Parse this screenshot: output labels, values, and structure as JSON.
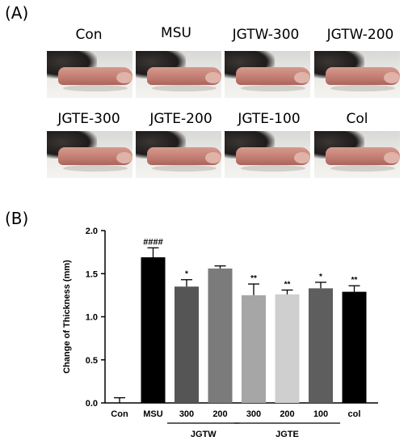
{
  "panels": {
    "a_label": "(A)",
    "b_label": "(B)"
  },
  "photos": {
    "row1": [
      "Con",
      "MSU",
      "JGTW-300",
      "JGTW-200"
    ],
    "row2": [
      "JGTE-300",
      "JGTE-200",
      "JGTE-100",
      "Col"
    ]
  },
  "chart_data": {
    "type": "bar",
    "categories": [
      "Con",
      "MSU",
      "300",
      "200",
      "300",
      "200",
      "100",
      "col"
    ],
    "values": [
      0.0,
      1.69,
      1.35,
      1.56,
      1.25,
      1.26,
      1.33,
      1.29
    ],
    "errors": [
      0.06,
      0.11,
      0.08,
      0.03,
      0.13,
      0.05,
      0.07,
      0.07
    ],
    "bar_colors": [
      "#000000",
      "#000000",
      "#555555",
      "#7b7b7b",
      "#a6a6a6",
      "#cfcfcf",
      "#5e5e5e",
      "#000000"
    ],
    "annotations": [
      "",
      "####",
      "*",
      "",
      "**",
      "**",
      "*",
      "**"
    ],
    "groups": [
      {
        "label": "JGTW",
        "from": 2,
        "to": 3
      },
      {
        "label": "JGTE",
        "from": 4,
        "to": 6
      }
    ],
    "ylabel": "Change of Thickness (mm)",
    "xlabel": "",
    "ylim": [
      0.0,
      2.0
    ],
    "yticks": [
      "0.0",
      "0.5",
      "1.0",
      "1.5",
      "2.0"
    ],
    "grid": false
  }
}
